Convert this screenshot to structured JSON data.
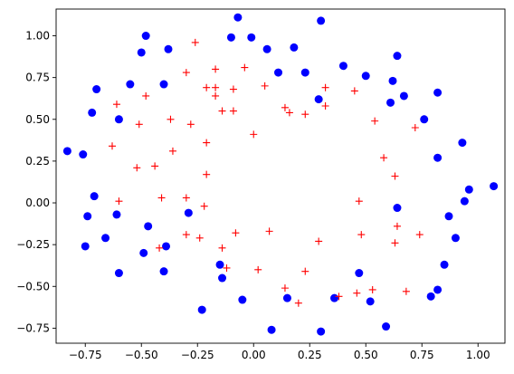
{
  "chart_data": {
    "type": "scatter",
    "title": "",
    "xlabel": "",
    "ylabel": "",
    "xlim": [
      -0.88,
      1.12
    ],
    "ylim": [
      -0.84,
      1.16
    ],
    "x_ticks": [
      -0.75,
      -0.5,
      -0.25,
      0.0,
      0.25,
      0.5,
      0.75,
      1.0
    ],
    "x_tick_labels": [
      "−0.75",
      "−0.50",
      "−0.25",
      "0.00",
      "0.25",
      "0.50",
      "0.75",
      "1.00"
    ],
    "y_ticks": [
      -0.75,
      -0.5,
      -0.25,
      0.0,
      0.25,
      0.5,
      0.75,
      1.0
    ],
    "y_tick_labels": [
      "−0.75",
      "−0.50",
      "−0.25",
      "0.00",
      "0.25",
      "0.50",
      "0.75",
      "1.00"
    ],
    "grid": false,
    "series": [
      {
        "marker": "circle",
        "color": "#0000ff",
        "points": [
          [
            -0.07,
            1.11
          ],
          [
            0.3,
            1.09
          ],
          [
            -0.48,
            1.0
          ],
          [
            -0.1,
            0.99
          ],
          [
            -0.01,
            0.99
          ],
          [
            -0.5,
            0.9
          ],
          [
            -0.38,
            0.92
          ],
          [
            0.06,
            0.92
          ],
          [
            0.18,
            0.93
          ],
          [
            0.64,
            0.88
          ],
          [
            -0.4,
            0.71
          ],
          [
            -0.7,
            0.68
          ],
          [
            0.4,
            0.82
          ],
          [
            0.5,
            0.76
          ],
          [
            0.62,
            0.73
          ],
          [
            0.11,
            0.78
          ],
          [
            0.23,
            0.78
          ],
          [
            0.67,
            0.64
          ],
          [
            0.82,
            0.66
          ],
          [
            -0.55,
            0.71
          ],
          [
            -0.72,
            0.54
          ],
          [
            -0.6,
            0.5
          ],
          [
            0.61,
            0.6
          ],
          [
            0.76,
            0.5
          ],
          [
            0.29,
            0.62
          ],
          [
            0.93,
            0.36
          ],
          [
            -0.83,
            0.31
          ],
          [
            -0.76,
            0.29
          ],
          [
            0.82,
            0.27
          ],
          [
            1.07,
            0.1
          ],
          [
            0.96,
            0.08
          ],
          [
            -0.71,
            0.04
          ],
          [
            0.64,
            -0.03
          ],
          [
            0.94,
            0.01
          ],
          [
            -0.74,
            -0.08
          ],
          [
            -0.61,
            -0.07
          ],
          [
            -0.29,
            -0.06
          ],
          [
            0.87,
            -0.08
          ],
          [
            -0.47,
            -0.14
          ],
          [
            -0.66,
            -0.21
          ],
          [
            0.9,
            -0.21
          ],
          [
            -0.75,
            -0.26
          ],
          [
            -0.39,
            -0.26
          ],
          [
            -0.49,
            -0.3
          ],
          [
            0.85,
            -0.37
          ],
          [
            -0.6,
            -0.42
          ],
          [
            -0.4,
            -0.41
          ],
          [
            -0.15,
            -0.37
          ],
          [
            -0.14,
            -0.45
          ],
          [
            0.47,
            -0.42
          ],
          [
            0.82,
            -0.52
          ],
          [
            0.15,
            -0.57
          ],
          [
            0.36,
            -0.57
          ],
          [
            0.79,
            -0.56
          ],
          [
            0.52,
            -0.59
          ],
          [
            -0.05,
            -0.58
          ],
          [
            -0.23,
            -0.64
          ],
          [
            0.59,
            -0.74
          ],
          [
            0.08,
            -0.76
          ],
          [
            0.3,
            -0.77
          ]
        ]
      },
      {
        "marker": "plus",
        "color": "#ff0000",
        "points": [
          [
            -0.26,
            0.96
          ],
          [
            -0.3,
            0.78
          ],
          [
            -0.17,
            0.8
          ],
          [
            -0.04,
            0.81
          ],
          [
            -0.21,
            0.69
          ],
          [
            -0.17,
            0.69
          ],
          [
            -0.17,
            0.64
          ],
          [
            -0.09,
            0.68
          ],
          [
            0.05,
            0.7
          ],
          [
            0.32,
            0.69
          ],
          [
            -0.48,
            0.64
          ],
          [
            -0.61,
            0.59
          ],
          [
            0.45,
            0.67
          ],
          [
            -0.14,
            0.55
          ],
          [
            -0.09,
            0.55
          ],
          [
            0.14,
            0.57
          ],
          [
            0.16,
            0.54
          ],
          [
            0.23,
            0.53
          ],
          [
            0.32,
            0.58
          ],
          [
            -0.37,
            0.5
          ],
          [
            -0.51,
            0.47
          ],
          [
            -0.28,
            0.47
          ],
          [
            0.54,
            0.49
          ],
          [
            0.72,
            0.45
          ],
          [
            0.0,
            0.41
          ],
          [
            -0.63,
            0.34
          ],
          [
            -0.21,
            0.36
          ],
          [
            -0.36,
            0.31
          ],
          [
            0.58,
            0.27
          ],
          [
            -0.52,
            0.21
          ],
          [
            -0.44,
            0.22
          ],
          [
            -0.21,
            0.17
          ],
          [
            0.63,
            0.16
          ],
          [
            -0.6,
            0.01
          ],
          [
            -0.41,
            0.03
          ],
          [
            -0.3,
            0.03
          ],
          [
            -0.22,
            -0.02
          ],
          [
            0.47,
            0.01
          ],
          [
            0.64,
            -0.14
          ],
          [
            -0.3,
            -0.19
          ],
          [
            -0.24,
            -0.21
          ],
          [
            -0.08,
            -0.18
          ],
          [
            0.07,
            -0.17
          ],
          [
            0.48,
            -0.19
          ],
          [
            0.74,
            -0.19
          ],
          [
            -0.42,
            -0.27
          ],
          [
            -0.14,
            -0.27
          ],
          [
            0.29,
            -0.23
          ],
          [
            0.63,
            -0.24
          ],
          [
            -0.12,
            -0.39
          ],
          [
            0.02,
            -0.4
          ],
          [
            0.23,
            -0.41
          ],
          [
            0.14,
            -0.51
          ],
          [
            0.53,
            -0.52
          ],
          [
            0.68,
            -0.53
          ],
          [
            0.46,
            -0.54
          ],
          [
            0.38,
            -0.56
          ],
          [
            0.2,
            -0.6
          ]
        ]
      }
    ]
  }
}
